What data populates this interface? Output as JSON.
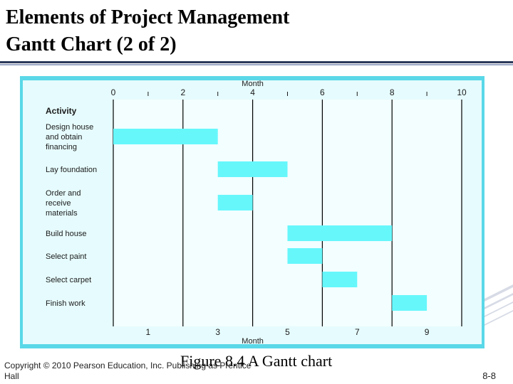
{
  "slide": {
    "title_line1": "Elements of Project Management",
    "title_line2": "Gantt Chart  (2 of 2)",
    "caption": "Figure 8.4   A Gantt chart",
    "copyright": "Copyright © 2010 Pearson Education, Inc. Publishing as Prentice Hall",
    "page_number": "8-8"
  },
  "colors": {
    "frame": "#5ad8e8",
    "plot_bg": "#e6fbfd",
    "bar": "#66f7fb",
    "gridline": "#000000",
    "text": "#1b1b1b"
  },
  "chart_data": {
    "type": "gantt",
    "activity_header": "Activity",
    "top_axis_label": "Month",
    "bottom_axis_label": "Month",
    "top_ticks": [
      "0",
      "2",
      "4",
      "6",
      "8",
      "10"
    ],
    "bottom_ticks": [
      "1",
      "3",
      "5",
      "7",
      "9"
    ],
    "xlim": [
      0,
      10
    ],
    "gridlines": [
      0,
      2,
      4,
      6,
      8,
      10
    ],
    "activities": [
      {
        "name": "Design house\nand obtain\nfinancing",
        "start": 0,
        "end": 3
      },
      {
        "name": "Lay foundation",
        "start": 3,
        "end": 5
      },
      {
        "name": "Order and\nreceive\nmaterials",
        "start": 3,
        "end": 4
      },
      {
        "name": "Build house",
        "start": 5,
        "end": 8
      },
      {
        "name": "Select paint",
        "start": 5,
        "end": 6
      },
      {
        "name": "Select carpet",
        "start": 6,
        "end": 7
      },
      {
        "name": "Finish work",
        "start": 8,
        "end": 9
      }
    ]
  }
}
